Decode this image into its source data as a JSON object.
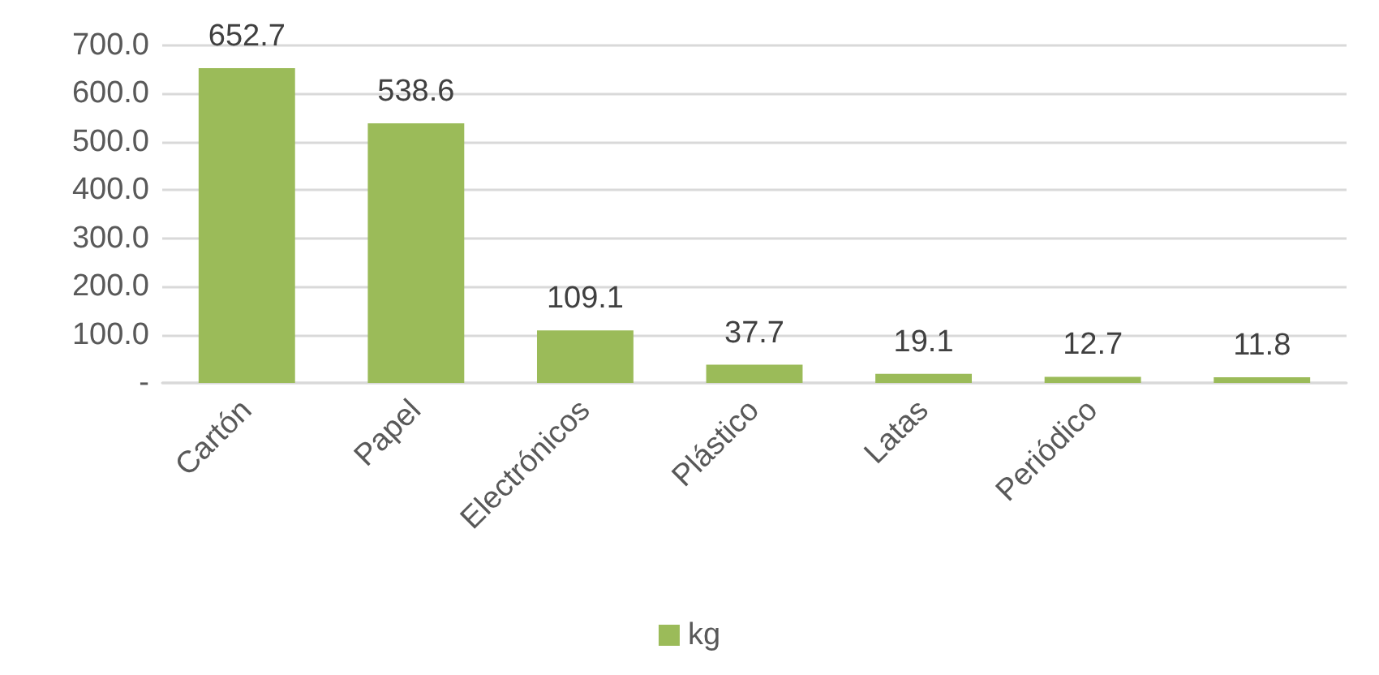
{
  "chart_data": {
    "type": "bar",
    "categories": [
      "Cartón",
      "Papel",
      "Electrónicos",
      "Plástico",
      "Latas",
      "Periódico",
      null
    ],
    "series": [
      {
        "name": "kg",
        "color": "#9bbb59",
        "values": [
          652.7,
          538.6,
          109.1,
          37.7,
          19.1,
          12.7,
          11.8
        ]
      }
    ],
    "ylim": [
      0,
      700
    ],
    "yticks": [
      {
        "value": 0,
        "label": "-"
      },
      {
        "value": 100,
        "label": "100.0"
      },
      {
        "value": 200,
        "label": "200.0"
      },
      {
        "value": 300,
        "label": "300.0"
      },
      {
        "value": 400,
        "label": "400.0"
      },
      {
        "value": 500,
        "label": "500.0"
      },
      {
        "value": 600,
        "label": "600.0"
      },
      {
        "value": 700,
        "label": "700.0"
      }
    ],
    "grid": "y",
    "legend": "bottom",
    "data_labels": true
  }
}
